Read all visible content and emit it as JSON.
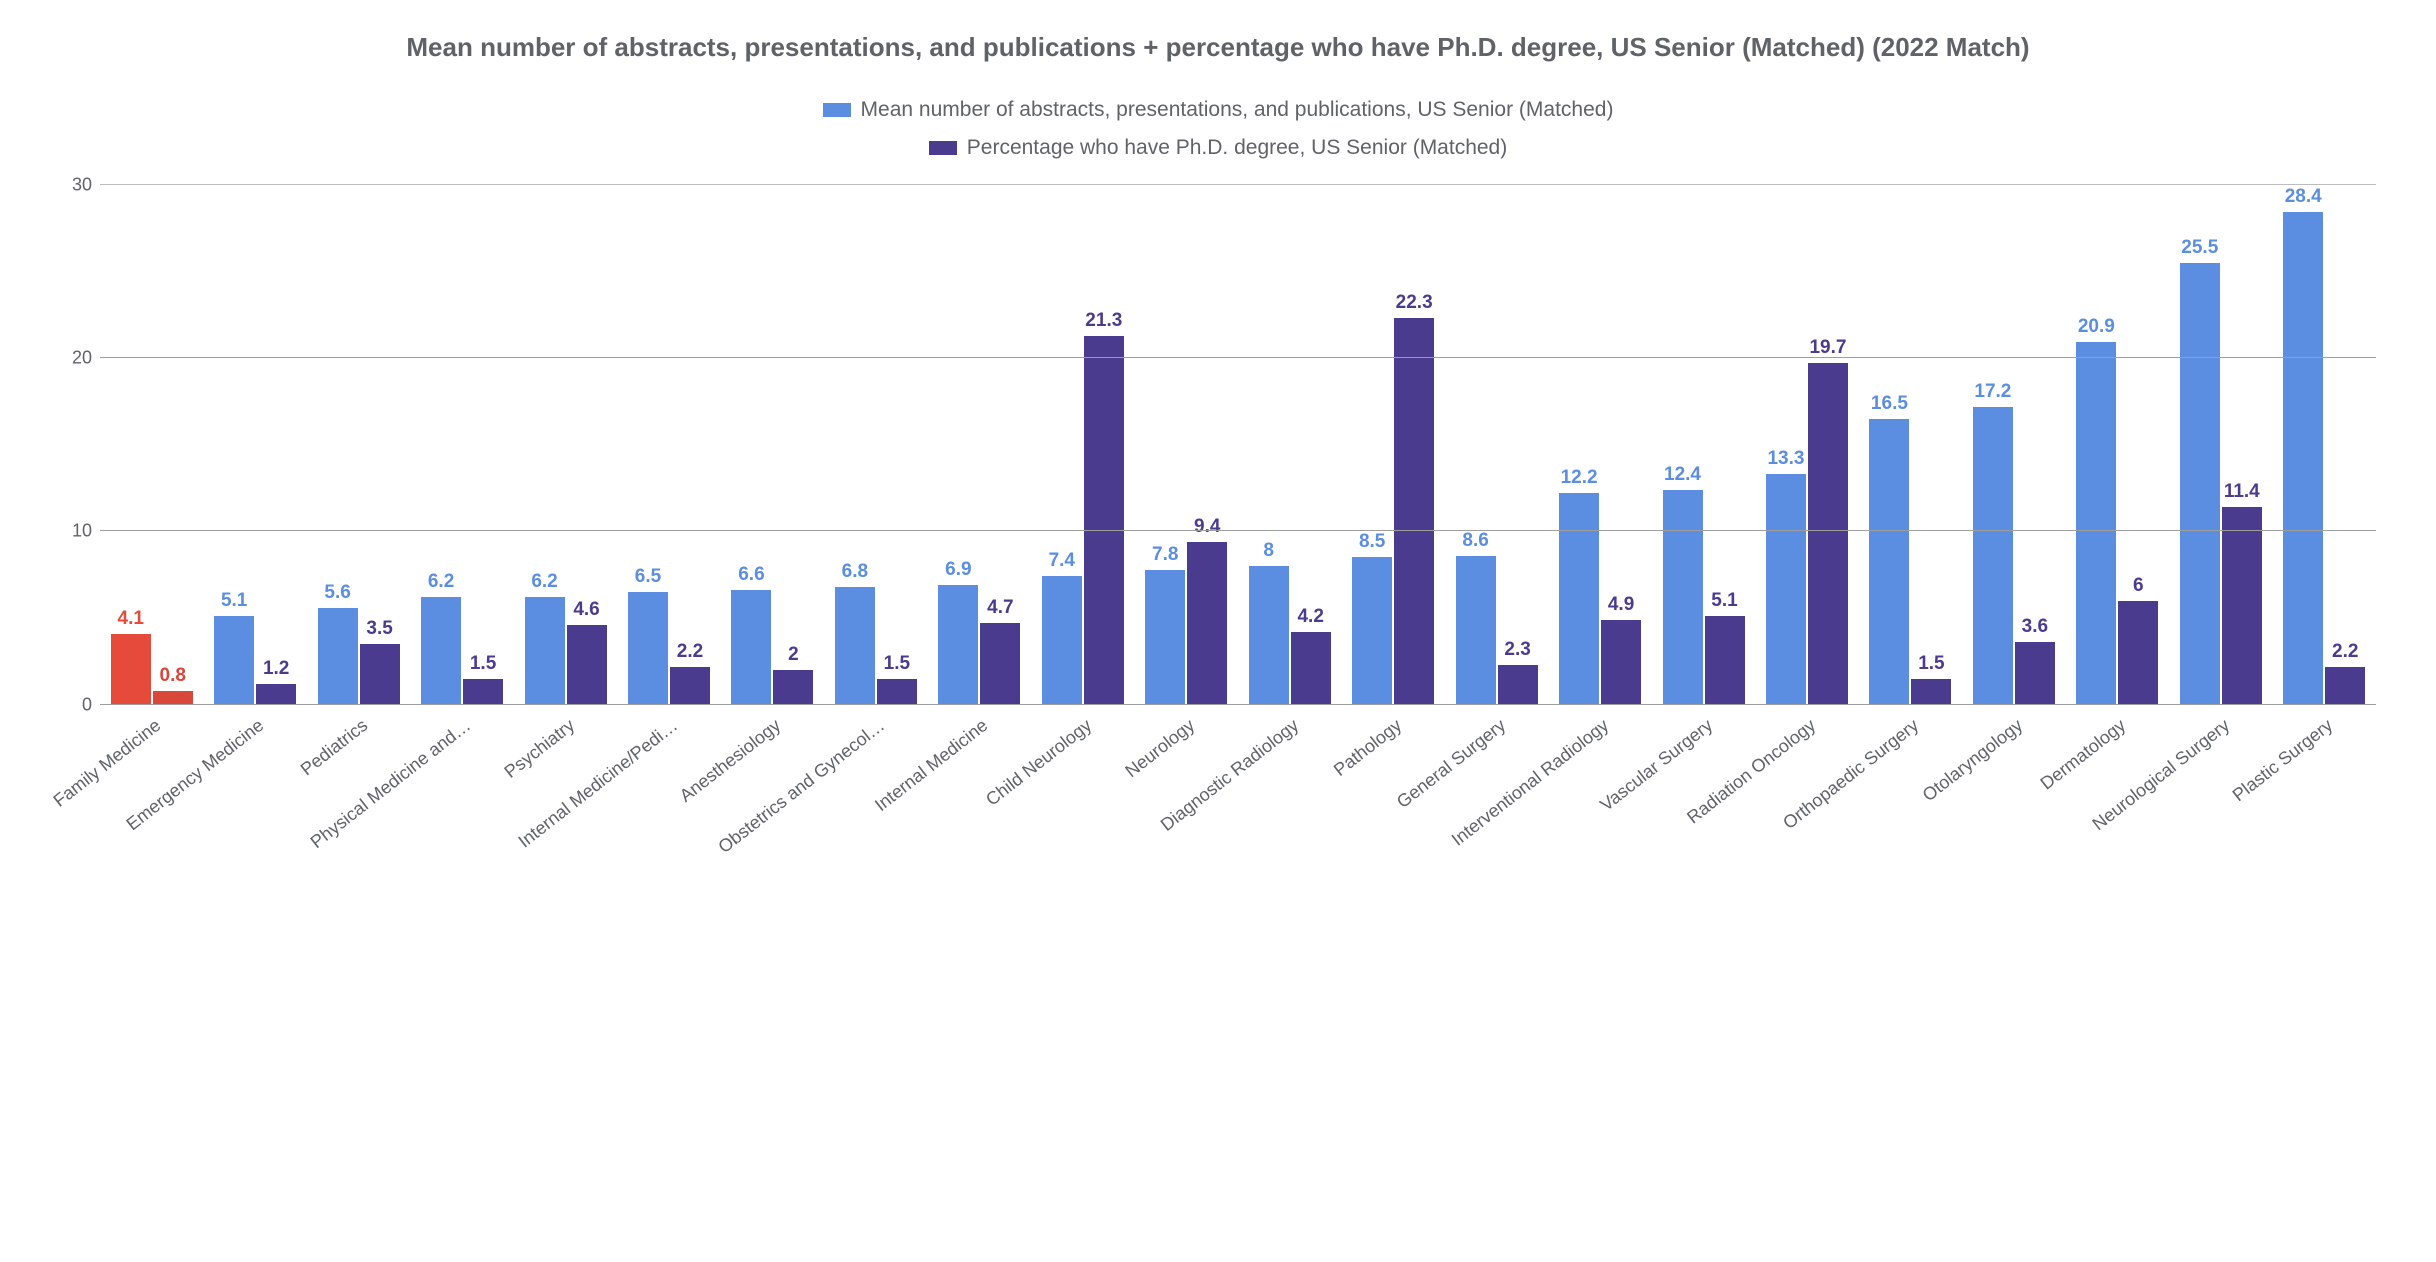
{
  "chart": {
    "type": "bar",
    "title": "Mean number of abstracts, presentations, and publications + percentage who have Ph.D. degree, US Senior (Matched) (2022 Match)",
    "title_fontsize": 26,
    "title_color": "#5f6368",
    "background_color": "#ffffff",
    "grid_color": "#9e9e9e",
    "grid_top_color": "#bdbdbd",
    "ylim": [
      0,
      30
    ],
    "yticks": [
      0,
      10,
      20,
      30
    ],
    "axis_fontsize": 18,
    "axis_color": "#5f6368",
    "value_label_fontsize": 19,
    "x_label_fontsize": 18,
    "legend_fontsize": 21,
    "legend": [
      {
        "label": "Mean number of abstracts, presentations, and publications, US Senior (Matched)",
        "color": "#5b8ee0"
      },
      {
        "label": "Percentage who have Ph.D. degree, US Senior (Matched)",
        "color": "#4b3b8f"
      }
    ],
    "highlight_colors": {
      "series_a": "#e64a3b",
      "series_b": "#d9463a"
    },
    "categories": [
      "Family Medicine",
      "Emergency Medicine",
      "Pediatrics",
      "Physical Medicine and…",
      "Psychiatry",
      "Internal Medicine/Pedi…",
      "Anesthesiology",
      "Obstetrics and Gynecol…",
      "Internal Medicine",
      "Child Neurology",
      "Neurology",
      "Diagnostic Radiology",
      "Pathology",
      "General Surgery",
      "Interventional Radiology",
      "Vascular Surgery",
      "Radiation Oncology",
      "Orthopaedic Surgery",
      "Otolaryngology",
      "Dermatology",
      "Neurological Surgery",
      "Plastic Surgery"
    ],
    "series_a_values": [
      4.1,
      5.1,
      5.6,
      6.2,
      6.2,
      6.5,
      6.6,
      6.8,
      6.9,
      7.4,
      7.8,
      8,
      8.5,
      8.6,
      12.2,
      12.4,
      13.3,
      16.5,
      17.2,
      20.9,
      25.5,
      28.4
    ],
    "series_b_values": [
      0.8,
      1.2,
      3.5,
      1.5,
      4.6,
      2.2,
      2,
      1.5,
      4.7,
      21.3,
      9.4,
      4.2,
      22.3,
      2.3,
      4.9,
      5.1,
      19.7,
      1.5,
      3.6,
      6,
      11.4,
      2.2
    ],
    "highlight_index": 0
  }
}
